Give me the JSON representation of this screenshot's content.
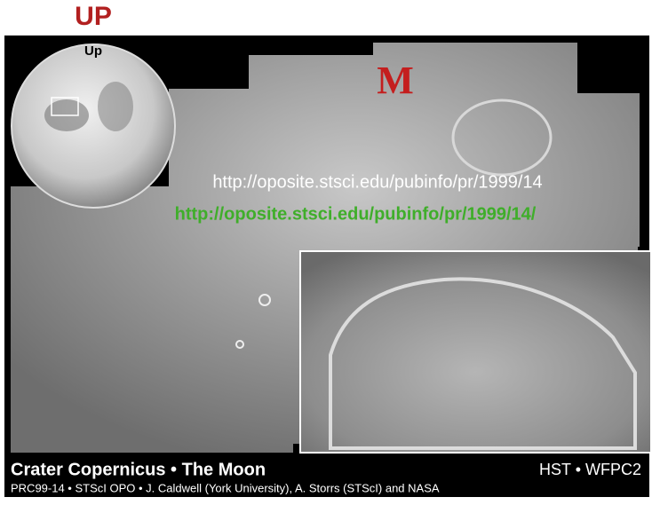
{
  "header": {
    "label": "UP"
  },
  "moon": {
    "label": "Up"
  },
  "marker": "M",
  "links": {
    "plain": "http://oposite.stsci.edu/pubinfo/pr/1999/14",
    "green": "http://oposite.stsci.edu/pubinfo/pr/1999/14/"
  },
  "caption": {
    "title": "Crater Copernicus • The Moon",
    "instrument": "HST • WFPC2",
    "credit": "PRC99-14 • STScI OPO • J. Caldwell (York University), A. Storrs (STScI) and NASA"
  }
}
